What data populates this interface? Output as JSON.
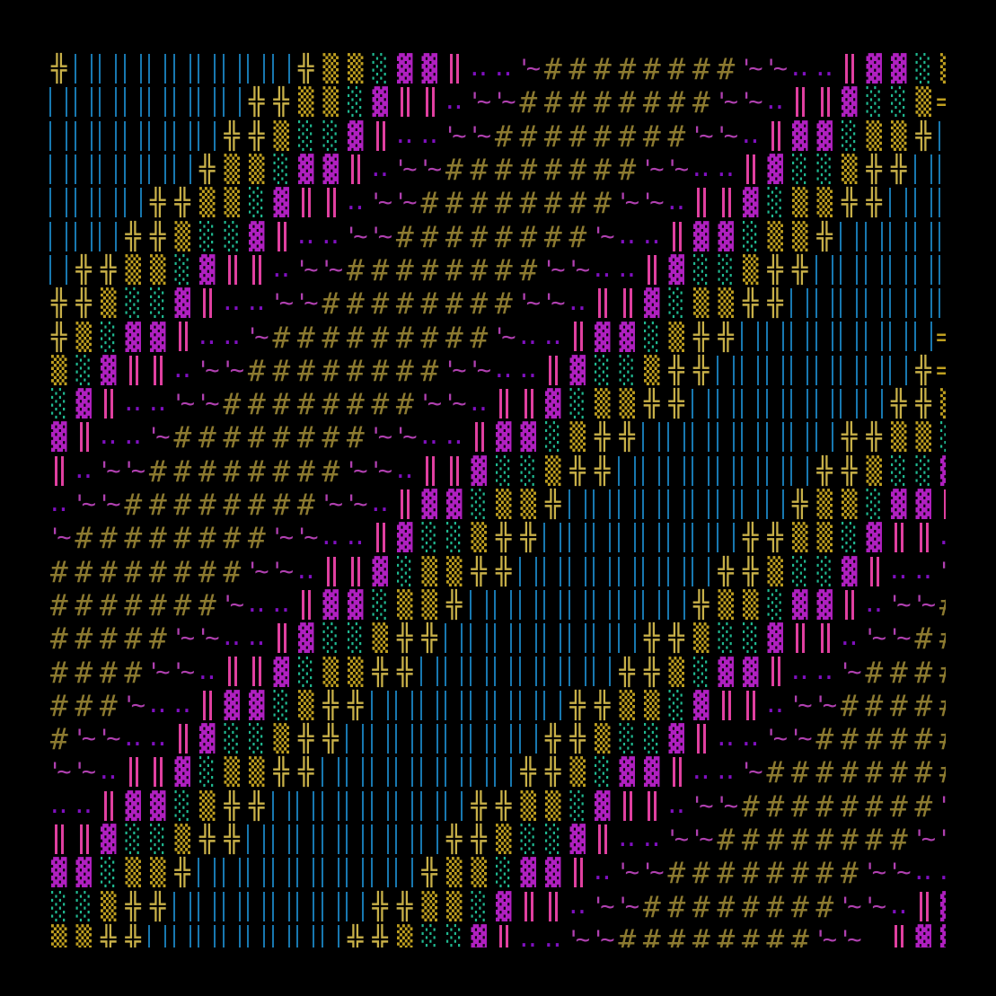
{
  "background": "#000000",
  "glyphs": {
    "║": {
      "color": "#1878b0",
      "kind": "blue",
      "name": "double-bar-blue"
    },
    "╬": {
      "color": "#c8b048",
      "kind": "cross",
      "name": "box-cross"
    },
    "▒": {
      "color": "#c0a020",
      "kind": "shade",
      "name": "medium-shade"
    },
    "░": {
      "color": "#20b890",
      "kind": "shade",
      "name": "light-shade"
    },
    "▓": {
      "color": "#b020c0",
      "kind": "shade",
      "name": "dark-shade"
    },
    "‖": {
      "color": "#e040a0",
      "kind": "pink",
      "name": "double-bar-pink"
    },
    "‥": {
      "color": "#8010c0",
      "kind": "dots",
      "name": "two-dots",
      "display": ".."
    },
    "~": {
      "color": "#b040b0",
      "kind": "tilde",
      "name": "tilde",
      "display": "'~"
    },
    "#": {
      "color": "#8c7a30",
      "kind": "hash",
      "name": "hash"
    },
    "=": {
      "color": "#c0a020",
      "kind": "eq",
      "name": "equals"
    }
  },
  "rows": [
    "╬║║║║║║║║║╬▒▒░▓▓‖‥‥~########~~‥‥‖▓▓░▒",
    "║║║║║║║║╬╬▒▒░▓‖‖‥~~########~~‥‖‖▓░░▒=",
    "║║║║║║║╬╬▒░░▓‖‥‥~~########~~‥‖▓▓░▒▒╬║",
    "║║║║║║╬▒▒░▓▓‖‥~~########~~‥‥‖▓░░▒╬╬║║",
    "║║║║╬╬▒▒░▓‖‖‥~~########~~‥‖‖▓░▒▒╬╬║║║",
    "║║║╬╬▒░░▓‖‥‥~~########~‥‥‖▓▓░▒▒╬║║║║║",
    "║╬╬▒▒░▓‖‖‥~~########~~‥‥‖▓░░▒╬╬║║║║║║",
    "╬╬▒░░▓‖‥‥~~########~~‥‖‖▓░▒▒╬╬║║║║║║║",
    "╬▒░▓▓‖‥‥~#########~‥‥‖▓▓░▒╬╬║║║║║║║║=",
    "▒░▓‖‖‥~~########~~‥‥‖▓░░▒╬╬║║║║║║║║╬=",
    "░▓‖‥‥~~########~~‥‖‖▓░▒▒╬╬║║║║║║║║╬╬▒",
    "▓‖‥‥~########~~‥‥‖▓▓░▒╬╬║║║║║║║║╬╬▒▒░",
    "‖‥~~########~~‥‖‖▓░░▒╬╬║║║║║║║║╬╬▒░░▓",
    "‥~~########~~‥‖▓▓░▒▒╬║║║║║║║║║╬▒▒░▓▓‖",
    "~########~~‥‥‖▓░░▒╬╬║║║║║║║║╬╬▒▒░▓‖‖‥",
    "########~~‥‖‖▓░▒▒╬╬║║║║║║║║╬╬▒░░▓‖‥‥~",
    "#######~‥‥‖▓▓░▒▒╬║║║║║║║║║╬▒▒░▓▓‖‥~~#",
    "#####~~‥‥‖▓░░▒╬╬║║║║║║║║╬╬▒░░▓‖‖‥~~##",
    "####~~‥‖‖▓░▒▒╬╬║║║║║║║║╬╬▒░▓▓‖‥‥~####",
    "###~‥‥‖▓▓░▒╬╬║║║║║║║║╬╬▒▒░▓‖‖‥~~#####",
    "#~~‥‥‖▓░░▒╬╬║║║║║║║║╬╬▒░░▓‖‥‥~~######",
    "~~‥‖‖▓░▒▒╬╬║║║║║║║║╬╬▒░▓▓‖‥‥~########",
    "‥‥‖▓▓░▒╬╬║║║║║║║║╬╬▒▒░▓‖‖‥~~########~",
    "‖‖▓░░▒╬╬║║║║║║║║╬╬▒░░▓‖‥‥~~########~~",
    "▓▓░▒▒╬║║║║║║║║║╬▒▒░▓▓‖‥~~########~~‥‥",
    "░░▒╬╬║║║║║║║║╬╬▒▒░▓‖‖‥~~########~~‥‖▓",
    "▒▒╬╬║║║║║║║║╬╬▒░░▓‖‥‥~~########~~ ‖▓▓"
  ]
}
